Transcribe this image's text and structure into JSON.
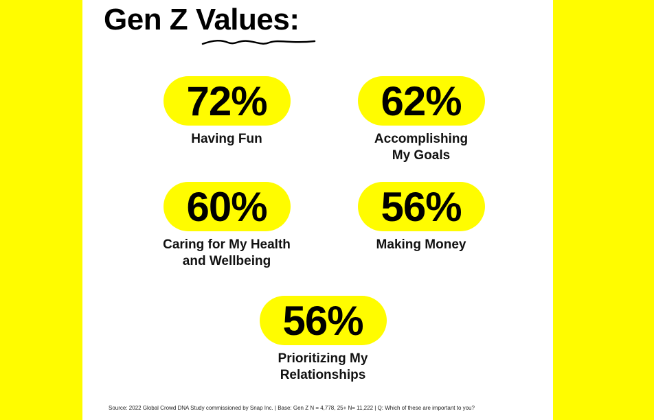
{
  "header": {
    "title": "Gen Z Values:"
  },
  "stats": [
    {
      "value": "72%",
      "label": "Having Fun"
    },
    {
      "value": "62%",
      "label": "Accomplishing My Goals"
    },
    {
      "value": "60%",
      "label": "Caring for My Health and Wellbeing"
    },
    {
      "value": "56%",
      "label": "Making Money"
    },
    {
      "value": "56%",
      "label": "Prioritizing My Relationships"
    }
  ],
  "footer": {
    "source": "Source: 2022 Global Crowd DNA Study commissioned by Snap Inc. | Base: Gen Z N = 4,778, 25+ N= 11,222 | Q: Which of these are important to you?"
  }
}
